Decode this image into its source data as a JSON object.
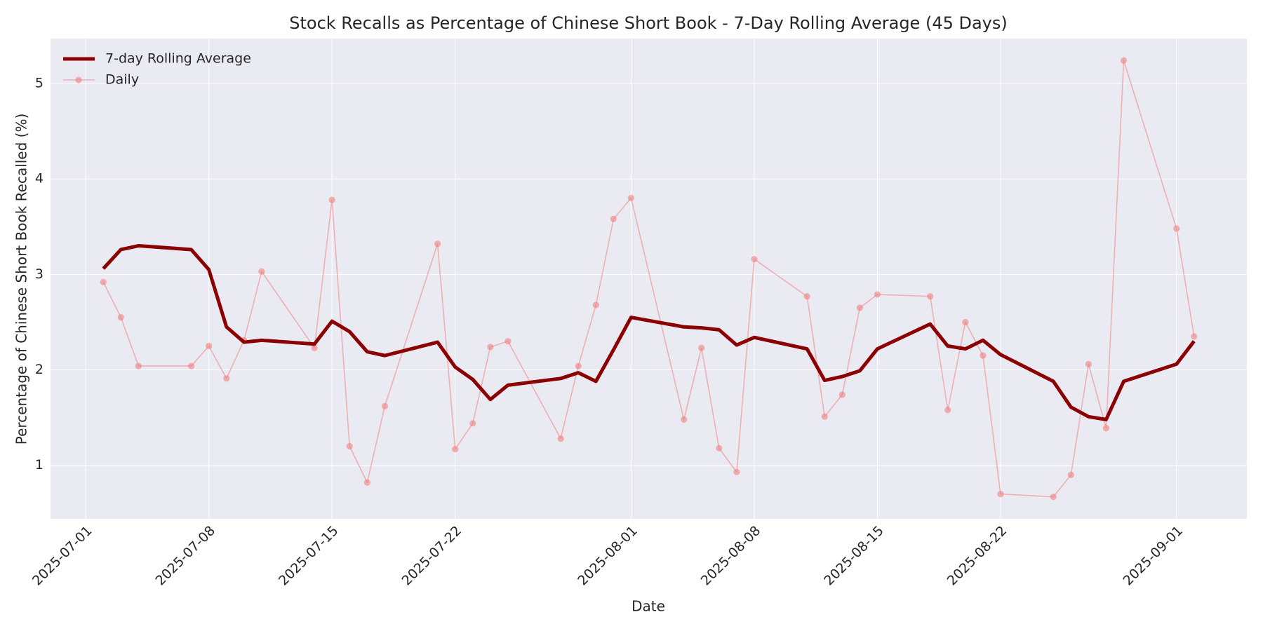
{
  "chart_data": {
    "type": "line",
    "title": "Stock Recalls as Percentage of Chinese Short Book - 7-Day Rolling Average (45 Days)",
    "x_label": "Date",
    "y_label": "Percentage of Chinese Short Book Recalled (%)",
    "x": [
      "2025-07-02",
      "2025-07-03",
      "2025-07-04",
      "2025-07-07",
      "2025-07-08",
      "2025-07-09",
      "2025-07-10",
      "2025-07-11",
      "2025-07-14",
      "2025-07-15",
      "2025-07-16",
      "2025-07-17",
      "2025-07-18",
      "2025-07-21",
      "2025-07-22",
      "2025-07-23",
      "2025-07-24",
      "2025-07-25",
      "2025-07-28",
      "2025-07-29",
      "2025-07-30",
      "2025-07-31",
      "2025-08-01",
      "2025-08-04",
      "2025-08-05",
      "2025-08-06",
      "2025-08-07",
      "2025-08-08",
      "2025-08-11",
      "2025-08-12",
      "2025-08-13",
      "2025-08-14",
      "2025-08-15",
      "2025-08-18",
      "2025-08-19",
      "2025-08-20",
      "2025-08-21",
      "2025-08-22",
      "2025-08-25",
      "2025-08-26",
      "2025-08-27",
      "2025-08-28",
      "2025-08-29",
      "2025-09-01",
      "2025-09-02"
    ],
    "series": [
      {
        "name": "7-day Rolling Average",
        "color": "#8b0000",
        "marker": false,
        "values": [
          3.06,
          3.26,
          3.3,
          3.26,
          3.05,
          2.45,
          2.29,
          2.31,
          2.27,
          2.51,
          2.4,
          2.19,
          2.15,
          2.29,
          2.03,
          1.9,
          1.69,
          1.84,
          1.91,
          1.97,
          1.88,
          2.21,
          2.55,
          2.45,
          2.44,
          2.42,
          2.26,
          2.34,
          2.22,
          1.89,
          1.93,
          1.99,
          2.22,
          2.48,
          2.25,
          2.22,
          2.31,
          2.16,
          1.88,
          1.61,
          1.51,
          1.48,
          1.88,
          2.06,
          2.3
        ]
      },
      {
        "name": "Daily",
        "color": "#f08080",
        "marker": true,
        "values": [
          2.92,
          2.55,
          2.04,
          2.04,
          2.25,
          1.91,
          2.31,
          3.03,
          2.23,
          3.78,
          1.2,
          0.82,
          1.62,
          3.32,
          1.17,
          1.44,
          2.24,
          2.3,
          1.28,
          2.04,
          2.68,
          3.58,
          3.8,
          1.48,
          2.23,
          1.18,
          0.93,
          3.16,
          2.77,
          1.51,
          1.74,
          2.65,
          2.79,
          2.77,
          1.58,
          2.5,
          2.15,
          0.7,
          0.67,
          0.9,
          2.06,
          1.39,
          5.24,
          3.48,
          2.35
        ]
      }
    ],
    "xlim": [
      "2025-06-29",
      "2025-09-05"
    ],
    "xticks": [
      "2025-07-01",
      "2025-07-08",
      "2025-07-15",
      "2025-07-22",
      "2025-08-01",
      "2025-08-08",
      "2025-08-15",
      "2025-08-22",
      "2025-09-01"
    ],
    "ylim": [
      0.44,
      5.47
    ],
    "yticks": [
      1,
      2,
      3,
      4,
      5
    ],
    "grid": true,
    "legend": "upper-left"
  }
}
